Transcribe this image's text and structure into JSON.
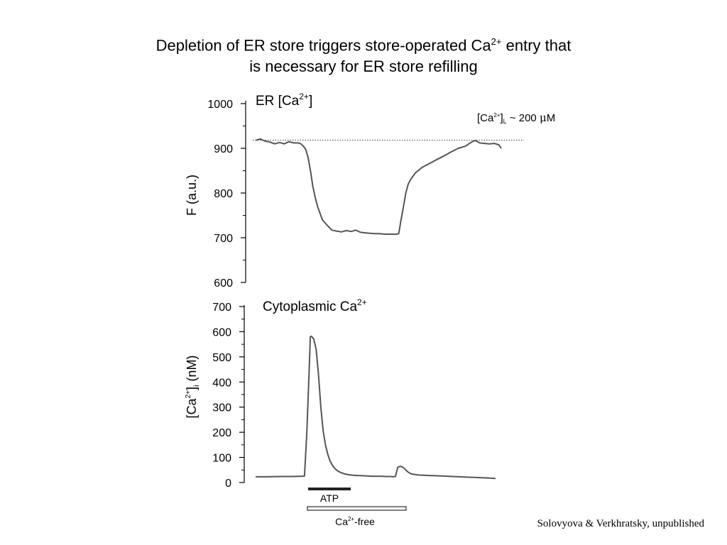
{
  "title": {
    "line1_a": "Depletion of ER store triggers store-operated Ca",
    "line1_sup": "2+",
    "line1_b": " entry that",
    "line2": "is necessary for ER store refilling"
  },
  "credit": "Solovyova & Verkhratsky, unpublished",
  "chart_data": [
    {
      "type": "line",
      "title": "ER [Ca2+]",
      "title_parts": {
        "base": "ER [Ca",
        "sup": "2+",
        "tail": "]"
      },
      "ylabel": "F (a.u.)",
      "ylim": [
        600,
        1000
      ],
      "yticks": [
        600,
        700,
        800,
        900,
        1000
      ],
      "ytick_labels": [
        "600",
        "700",
        "800",
        "900",
        "1000"
      ],
      "grid": false,
      "xlim": [
        0,
        100
      ],
      "reference_line": {
        "y": 918,
        "style": "dotted",
        "label_parts": {
          "open": "[Ca",
          "sup": "2+",
          "close": "]",
          "sub": "L",
          "value": " ~ 200 ",
          "mu": "μ",
          "unit": "M"
        }
      },
      "series": [
        {
          "color": "#555555",
          "x": [
            0,
            2,
            4,
            6,
            8,
            10,
            12,
            14,
            16,
            18,
            19,
            20,
            21,
            22,
            23,
            24,
            25,
            26,
            27,
            28,
            30,
            32,
            34,
            36,
            38,
            40,
            42,
            44,
            46,
            48,
            50,
            52,
            54,
            56,
            58,
            59,
            60,
            61,
            62,
            63,
            64,
            65,
            67,
            70,
            73,
            76,
            79,
            82,
            85,
            88,
            90,
            92,
            94,
            96,
            98,
            100,
            102,
            103
          ],
          "y": [
            918,
            921,
            916,
            914,
            910,
            913,
            910,
            915,
            912,
            912,
            910,
            905,
            898,
            880,
            850,
            815,
            790,
            770,
            755,
            740,
            728,
            717,
            715,
            713,
            716,
            714,
            717,
            712,
            711,
            710,
            709,
            709,
            708,
            708,
            708,
            708,
            709,
            740,
            770,
            800,
            820,
            830,
            845,
            858,
            866,
            875,
            883,
            892,
            900,
            905,
            912,
            918,
            912,
            911,
            910,
            911,
            908,
            900
          ]
        }
      ]
    },
    {
      "type": "line",
      "title": "Cytoplasmic Ca2+",
      "title_parts": {
        "base": "Cytoplasmic Ca",
        "sup": "2+",
        "tail": ""
      },
      "ylabel": "[Ca2+]i (nM)",
      "ylabel_parts": {
        "open": "[Ca",
        "sup": "2+",
        "close": "]",
        "sub": "i",
        "unit": " (nM)"
      },
      "ylim": [
        0,
        700
      ],
      "yticks": [
        0,
        100,
        200,
        300,
        400,
        500,
        600,
        700
      ],
      "ytick_labels": [
        "0",
        "100",
        "200",
        "300",
        "400",
        "500",
        "600",
        "700"
      ],
      "grid": false,
      "xlim": [
        0,
        100
      ],
      "series": [
        {
          "color": "#555555",
          "x": [
            0,
            5,
            10,
            15,
            20,
            21,
            22,
            23,
            23.5,
            24,
            25,
            26,
            27,
            28,
            29,
            30,
            31,
            32,
            33,
            34,
            35,
            36,
            38,
            40,
            42,
            44,
            46,
            48,
            50,
            52,
            54,
            56,
            58,
            59,
            60,
            61,
            62,
            63,
            64,
            65,
            66,
            67,
            70,
            75,
            80,
            85,
            90,
            95,
            100,
            103
          ],
          "y": [
            23,
            23,
            24,
            24,
            25,
            26,
            200,
            450,
            580,
            582,
            570,
            530,
            430,
            300,
            205,
            150,
            112,
            85,
            68,
            56,
            48,
            42,
            35,
            31,
            29,
            28,
            27,
            26,
            25,
            25,
            25,
            24,
            24,
            23,
            24,
            60,
            65,
            62,
            55,
            45,
            38,
            34,
            30,
            28,
            26,
            24,
            22,
            20,
            18,
            16
          ]
        }
      ]
    }
  ],
  "bars": {
    "atp_label": "ATP",
    "ca_free_base": "Ca",
    "ca_free_sup": "2+",
    "ca_free_tail": "-free"
  }
}
